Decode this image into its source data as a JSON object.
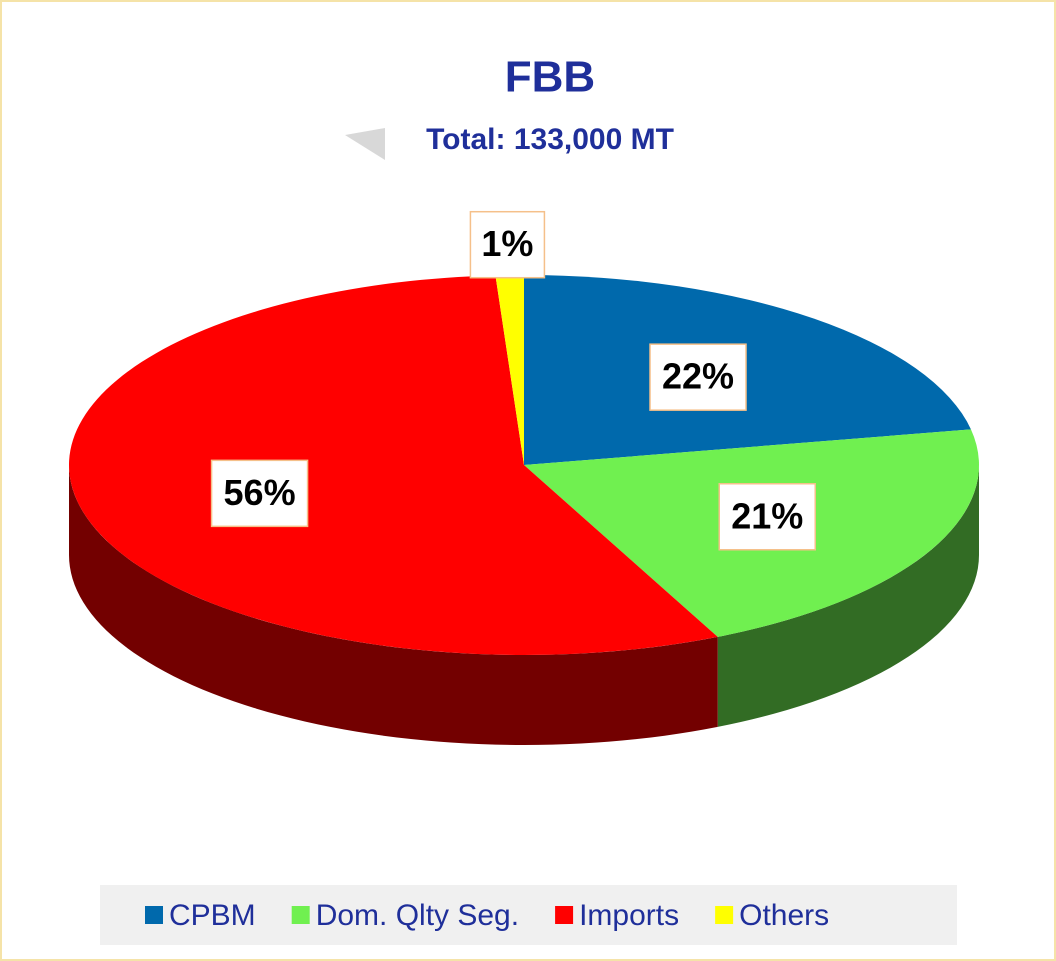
{
  "chart_data": {
    "type": "pie",
    "title": "FBB",
    "subtitle": "Total: 133,000 MT",
    "categories": [
      "CPBM",
      "Dom. Qlty Seg.",
      "Imports",
      "Others"
    ],
    "values": [
      22,
      21,
      56,
      1
    ],
    "value_labels": [
      "22%",
      "21%",
      "56%",
      "1%"
    ],
    "colors": [
      "#0069ac",
      "#70f050",
      "#ff0000",
      "#ffff00"
    ],
    "legend": "bottom"
  }
}
